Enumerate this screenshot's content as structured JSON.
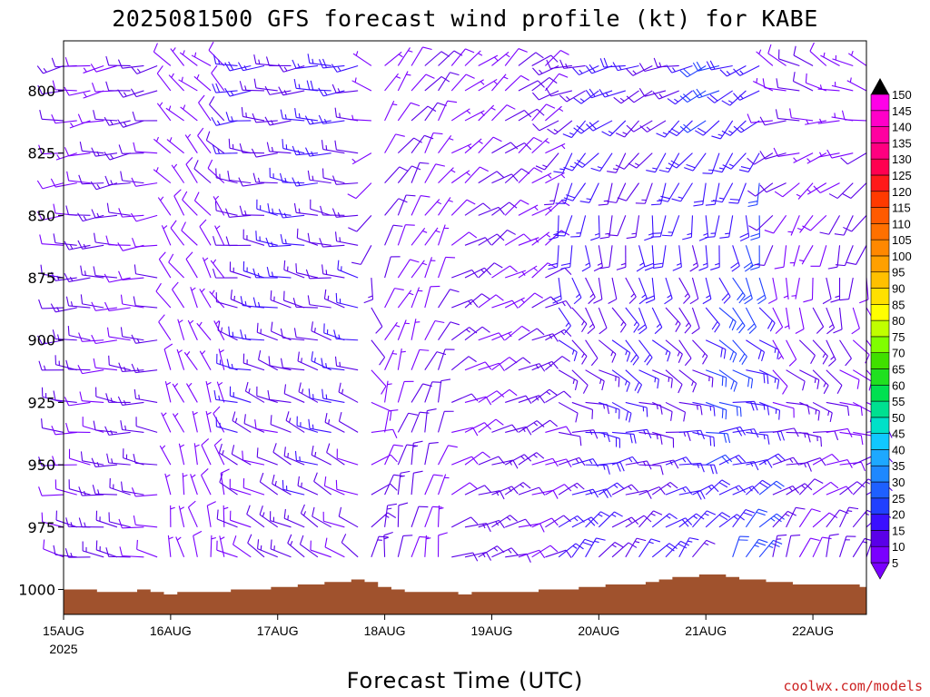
{
  "chart_data": {
    "type": "wind_barb_profile",
    "title": "2025081500 GFS forecast wind profile (kt) for KABE",
    "xlabel": "Forecast Time (UTC)",
    "ylabel": "",
    "credit": "coolwx.com/models",
    "y_axis": {
      "variable": "pressure (hPa)",
      "reversed": true,
      "range": [
        780,
        1010
      ],
      "ticks": [
        800,
        825,
        850,
        875,
        900,
        925,
        950,
        975,
        1000
      ]
    },
    "x_axis": {
      "range": [
        "2025-08-15T00Z",
        "2025-08-22T12Z"
      ],
      "ticks": [
        "15AUG",
        "16AUG",
        "17AUG",
        "18AUG",
        "19AUG",
        "20AUG",
        "21AUG",
        "22AUG"
      ],
      "year_label": "2025"
    },
    "barb_levels": [
      790,
      800,
      812,
      825,
      837,
      850,
      862,
      875,
      887,
      900,
      912,
      925,
      937,
      950,
      962,
      975,
      987
    ],
    "columns_per_day": 8,
    "column_count": 61,
    "speed_colorbar": {
      "levels": [
        5,
        10,
        15,
        20,
        25,
        30,
        35,
        40,
        45,
        50,
        55,
        60,
        65,
        70,
        75,
        80,
        85,
        90,
        95,
        100,
        105,
        110,
        115,
        120,
        125,
        130,
        135,
        140,
        145,
        150
      ],
      "colors": [
        "#7a00ff",
        "#5a00e8",
        "#3a10ff",
        "#2040ff",
        "#1e60ff",
        "#1e88ff",
        "#1ea8ff",
        "#10c8ff",
        "#00e0c8",
        "#00e090",
        "#00e050",
        "#20e020",
        "#40e000",
        "#80ff00",
        "#c0ff00",
        "#ffff00",
        "#ffe000",
        "#ffc000",
        "#ffa000",
        "#ff8800",
        "#ff7000",
        "#ff5a00",
        "#ff3a00",
        "#ff1a1a",
        "#ff0050",
        "#ff0080",
        "#ff00a0",
        "#ff00c8",
        "#ff00e8"
      ]
    },
    "wind_periods": [
      {
        "start": "15AUG 00Z",
        "end": "15AUG 21Z",
        "upper_dir_deg": 260,
        "lower_dir_deg": 280,
        "upper_kt": 10,
        "lower_kt": 12
      },
      {
        "start": "16AUG 00Z",
        "end": "16AUG 12Z",
        "upper_dir_deg": 310,
        "lower_dir_deg": 350,
        "upper_kt": 8,
        "lower_kt": 5
      },
      {
        "start": "16AUG 12Z",
        "end": "17AUG 18Z",
        "upper_dir_deg": 265,
        "lower_dir_deg": 300,
        "upper_kt": 15,
        "lower_kt": 12
      },
      {
        "start": "18AUG 00Z",
        "end": "18AUG 12Z",
        "upper_dir_deg": 40,
        "lower_dir_deg": 10,
        "upper_kt": 8,
        "lower_kt": 10
      },
      {
        "start": "18AUG 12Z",
        "end": "19AUG 12Z",
        "upper_dir_deg": 50,
        "lower_dir_deg": 70,
        "upper_kt": 8,
        "lower_kt": 12
      },
      {
        "start": "19AUG 12Z",
        "end": "20AUG 21Z",
        "upper_dir_deg": 255,
        "lower_dir_deg": 40,
        "upper_kt": 15,
        "lower_kt": 15
      },
      {
        "start": "20AUG 21Z",
        "end": "21AUG 12Z",
        "upper_dir_deg": 250,
        "lower_dir_deg": 30,
        "upper_kt": 18,
        "lower_kt": 20
      },
      {
        "start": "21AUG 12Z",
        "end": "22AUG 12Z",
        "upper_dir_deg": 300,
        "lower_dir_deg": 20,
        "upper_kt": 8,
        "lower_kt": 12
      }
    ],
    "surface_pressure_hpa": [
      1000,
      1000,
      1000,
      1001,
      1001,
      1001,
      1000,
      1001,
      1002,
      1001,
      1001,
      1001,
      1001,
      1000,
      1000,
      1000,
      999,
      999,
      998,
      998,
      997,
      997,
      996,
      997,
      999,
      1000,
      1001,
      1001,
      1001,
      1001,
      1002,
      1001,
      1001,
      1001,
      1001,
      1001,
      1000,
      1000,
      1000,
      999,
      999,
      998,
      998,
      998,
      997,
      996,
      995,
      995,
      994,
      994,
      995,
      996,
      996,
      997,
      997,
      998,
      998,
      998,
      998,
      998,
      999
    ],
    "colors": {
      "terrain": "#a0522d",
      "credit": "#cc2222",
      "frame": "#000000"
    }
  }
}
